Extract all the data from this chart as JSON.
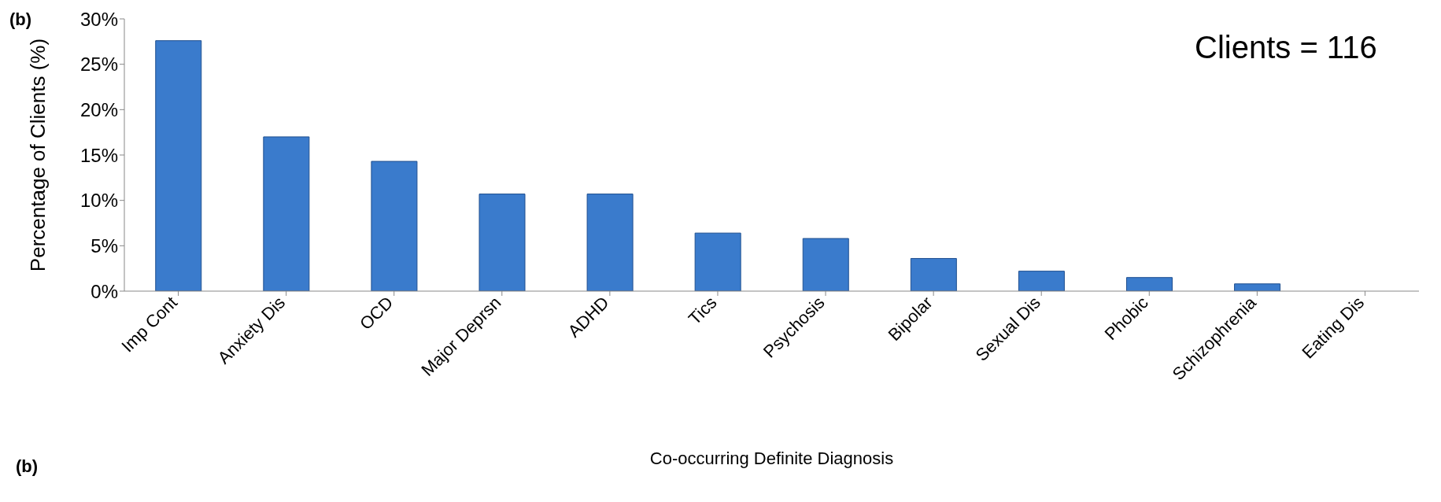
{
  "chart_data": {
    "type": "bar",
    "xlabel": "Co-occurring Definite Diagnosis",
    "ylabel": "Percentage of Clients (%)",
    "categories": [
      "Imp Cont",
      "Anxiety Dis",
      "OCD",
      "Major Deprsn",
      "ADHD",
      "Tics",
      "Psychosis",
      "Bipolar",
      "Sexual Dis",
      "Phobic",
      "Schizophrenia",
      "Eating Dis"
    ],
    "values": [
      27.6,
      17,
      14.3,
      10.7,
      10.7,
      6.4,
      5.8,
      3.6,
      2.2,
      1.5,
      0.8,
      0
    ],
    "color": "#3a7bcc",
    "ylim": [
      0,
      30
    ],
    "yticks": [
      {
        "value": 0,
        "label": "0%"
      },
      {
        "value": 5,
        "label": "5%"
      },
      {
        "value": 10,
        "label": "10%"
      },
      {
        "value": 15,
        "label": "15%"
      },
      {
        "value": 20,
        "label": "20%"
      },
      {
        "value": 25,
        "label": "25%"
      },
      {
        "value": 30,
        "label": "30%"
      }
    ],
    "grid": false,
    "annotations": [
      "(b)",
      "Clients = 116",
      "(b)"
    ]
  }
}
